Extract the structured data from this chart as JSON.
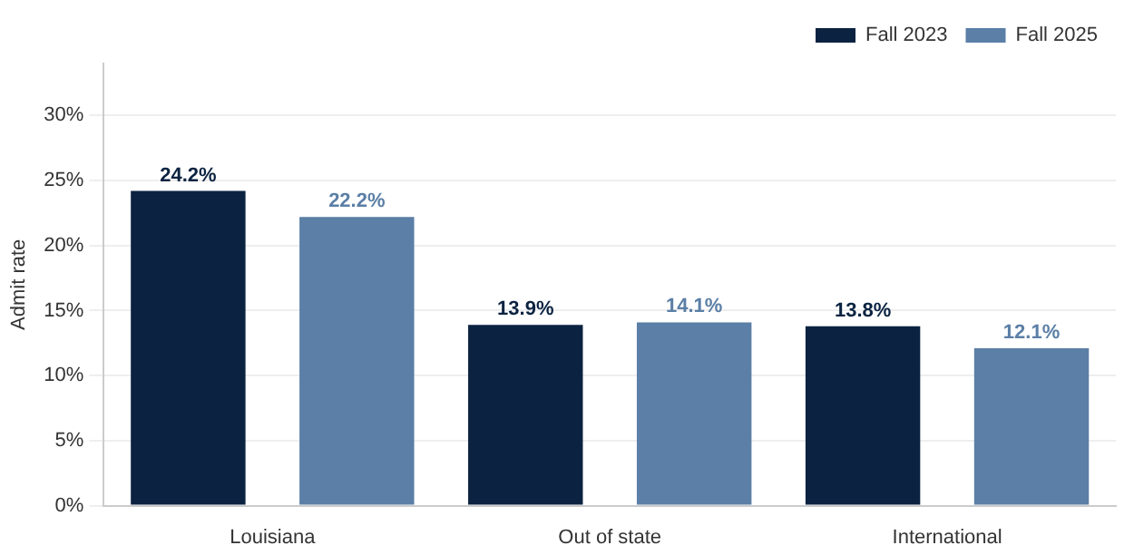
{
  "chart_data": {
    "type": "bar",
    "ylabel": "Admit rate",
    "categories": [
      "Louisiana",
      "Out of state",
      "International"
    ],
    "series": [
      {
        "name": "Fall 2023",
        "color": "#0b2341",
        "values": [
          24.2,
          13.9,
          13.8
        ],
        "value_labels": [
          "24.2%",
          "13.9%",
          "13.8%"
        ]
      },
      {
        "name": "Fall 2025",
        "color": "#5b7fa6",
        "values": [
          22.2,
          14.1,
          12.1
        ],
        "value_labels": [
          "22.2%",
          "14.1%",
          "12.1%"
        ]
      }
    ],
    "ylim": [
      0,
      34
    ],
    "yticks": [
      {
        "value": 0,
        "label": "0%"
      },
      {
        "value": 5,
        "label": "5%"
      },
      {
        "value": 10,
        "label": "10%"
      },
      {
        "value": 15,
        "label": "15%"
      },
      {
        "value": 20,
        "label": "20%"
      },
      {
        "value": 25,
        "label": "25%"
      },
      {
        "value": 30,
        "label": "30%"
      }
    ],
    "grid": "y",
    "legend": "top right"
  }
}
